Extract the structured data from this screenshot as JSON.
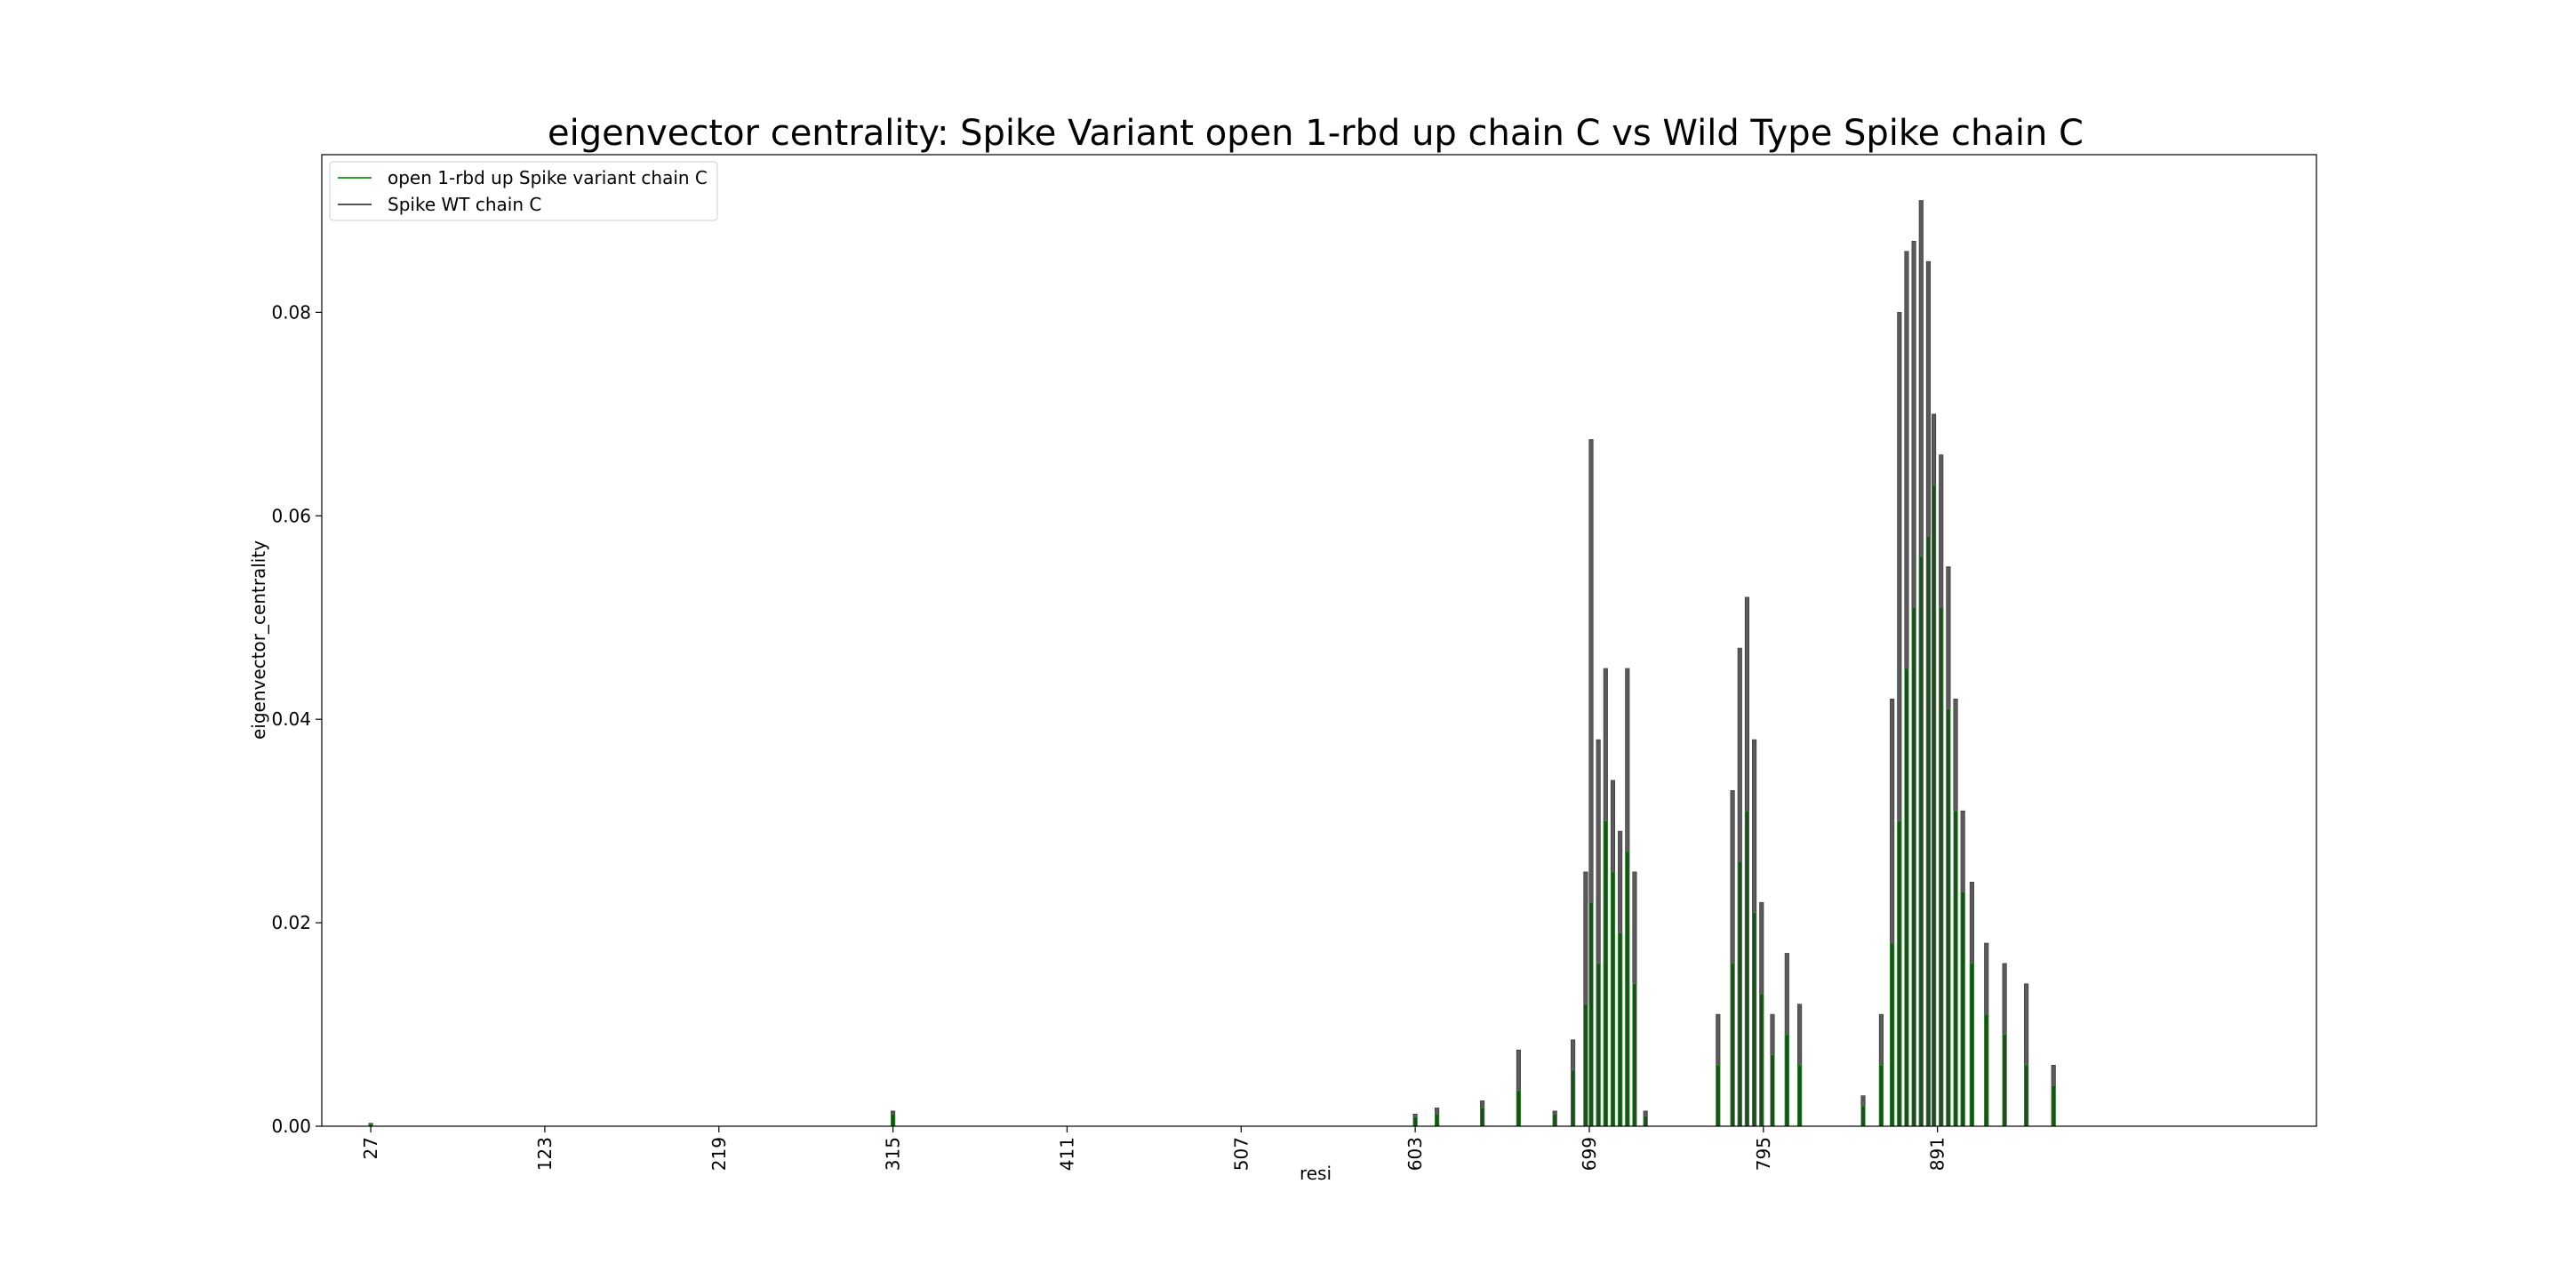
{
  "chart_data": {
    "type": "bar",
    "title": "eigenvector centrality: Spike Variant open 1-rbd up chain C vs Wild Type Spike chain C",
    "xlabel": "resi",
    "ylabel": "eigenvector_centrality",
    "xlim": [
      0,
      1100
    ],
    "ylim": [
      0,
      0.0955
    ],
    "x_ticks": [
      27,
      123,
      219,
      315,
      411,
      507,
      603,
      699,
      795,
      891
    ],
    "x_tick_labels": [
      "27",
      "123",
      "219",
      "315",
      "411",
      "507",
      "603",
      "699",
      "795",
      "891"
    ],
    "y_ticks": [
      0,
      0.02,
      0.04,
      0.06,
      0.08
    ],
    "y_tick_labels": [
      "0.00",
      "0.02",
      "0.04",
      "0.06",
      "0.08"
    ],
    "legend_position": "top-left",
    "grid": false,
    "series": [
      {
        "name": "open 1-rbd up Spike variant chain C",
        "color": "#2ca02c",
        "bar_color": "#1f4d1f",
        "x": [
          27,
          315,
          603,
          615,
          640,
          660,
          680,
          690,
          697,
          700,
          704,
          708,
          712,
          716,
          720,
          724,
          730,
          770,
          778,
          782,
          786,
          790,
          794,
          800,
          808,
          815,
          850,
          860,
          866,
          870,
          874,
          878,
          882,
          886,
          889,
          893,
          897,
          901,
          905,
          910,
          918,
          928,
          940,
          955
        ],
        "values": [
          0.0002,
          0.0012,
          0.0009,
          0.0012,
          0.0018,
          0.0035,
          0.0012,
          0.0055,
          0.012,
          0.022,
          0.016,
          0.03,
          0.025,
          0.019,
          0.027,
          0.014,
          0.001,
          0.006,
          0.016,
          0.026,
          0.031,
          0.021,
          0.013,
          0.007,
          0.009,
          0.006,
          0.002,
          0.006,
          0.018,
          0.03,
          0.045,
          0.051,
          0.056,
          0.058,
          0.063,
          0.051,
          0.041,
          0.031,
          0.023,
          0.016,
          0.011,
          0.009,
          0.006,
          0.004
        ]
      },
      {
        "name": "Spike WT chain C",
        "color": "#555555",
        "x": [
          27,
          315,
          603,
          615,
          640,
          660,
          680,
          690,
          697,
          700,
          704,
          708,
          712,
          716,
          720,
          724,
          730,
          770,
          778,
          782,
          786,
          790,
          794,
          800,
          808,
          815,
          850,
          860,
          866,
          870,
          874,
          878,
          882,
          886,
          889,
          893,
          897,
          901,
          905,
          910,
          918,
          928,
          940,
          955
        ],
        "values": [
          0.0003,
          0.0015,
          0.0012,
          0.0018,
          0.0025,
          0.0075,
          0.0015,
          0.0085,
          0.025,
          0.0675,
          0.038,
          0.045,
          0.034,
          0.029,
          0.045,
          0.025,
          0.0015,
          0.011,
          0.033,
          0.047,
          0.052,
          0.038,
          0.022,
          0.011,
          0.017,
          0.012,
          0.003,
          0.011,
          0.042,
          0.08,
          0.086,
          0.087,
          0.091,
          0.085,
          0.07,
          0.066,
          0.055,
          0.042,
          0.031,
          0.024,
          0.018,
          0.016,
          0.014,
          0.006
        ]
      }
    ]
  }
}
